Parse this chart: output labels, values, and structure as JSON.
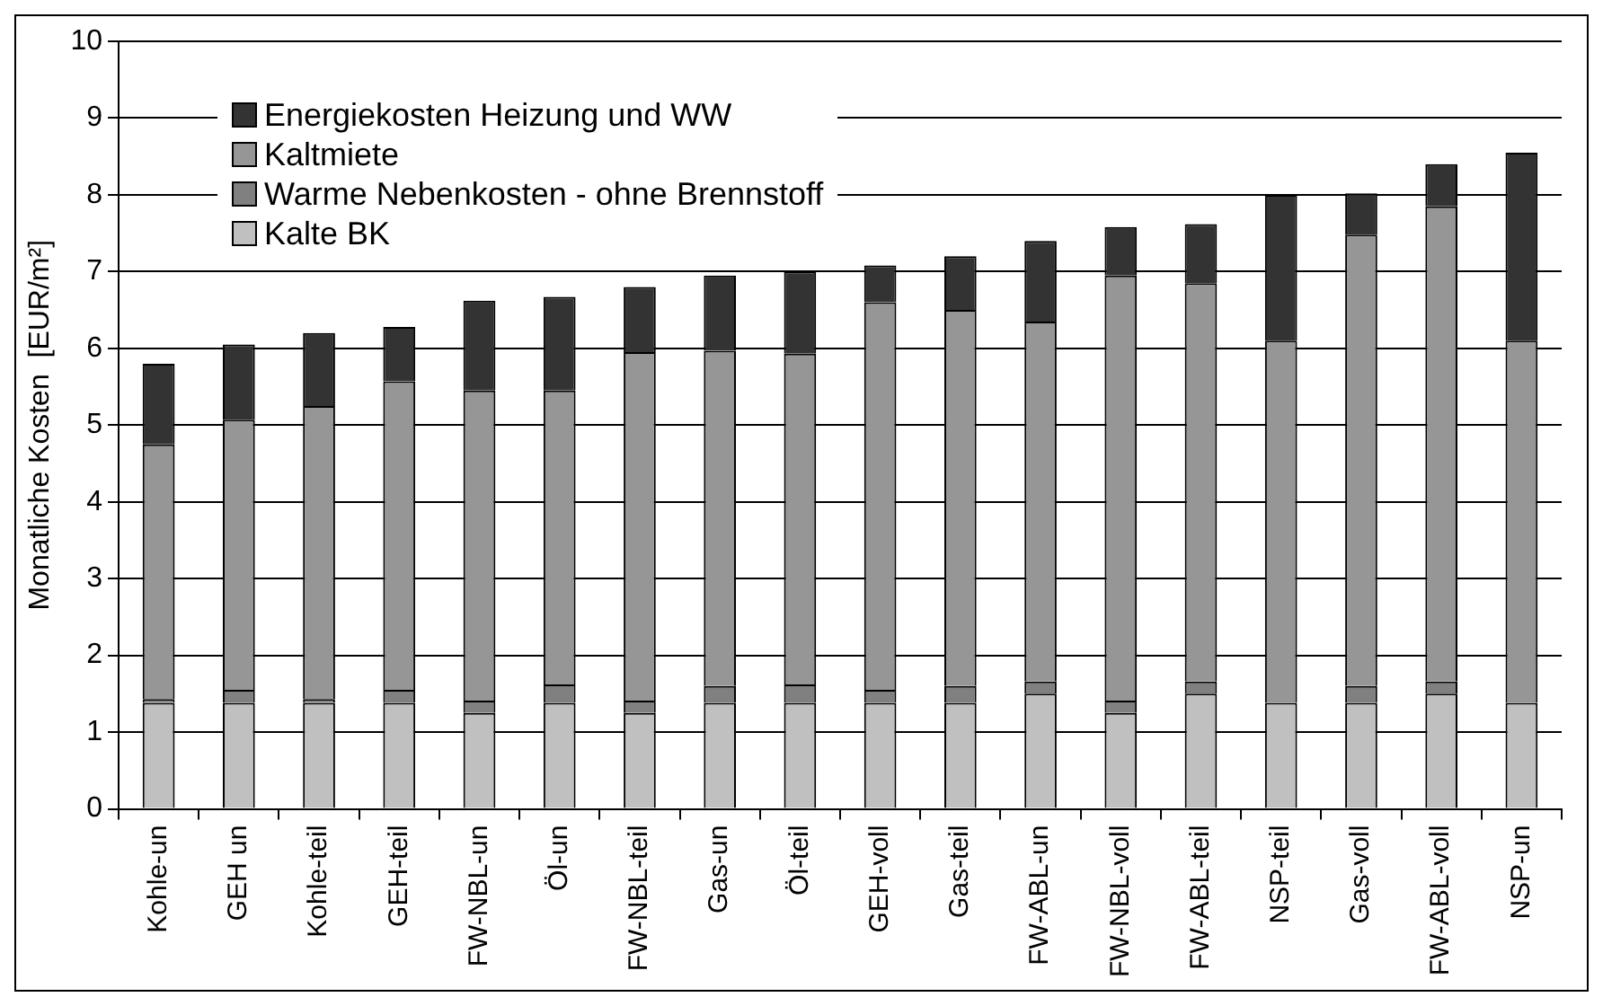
{
  "chart_data": {
    "type": "bar",
    "stacked": true,
    "ylabel": "Monatliche Kosten  [EUR/m²]",
    "categories": [
      "Kohle-un",
      "GEH un",
      "Kohle-teil",
      "GEH-teil",
      "FW-NBL-un",
      "Öl-un",
      "FW-NBL-teil",
      "Gas-un",
      "Öl-teil",
      "GEH-voll",
      "Gas-teil",
      "FW-ABL-un",
      "FW-NBL-voll",
      "FW-ABL-teil",
      "NSP-teil",
      "Gas-voll",
      "FW-ABL-voll",
      "NSP-un"
    ],
    "series": [
      {
        "name": "Kalte BK",
        "color": "#c0c0c0",
        "values": [
          1.38,
          1.38,
          1.38,
          1.38,
          1.25,
          1.38,
          1.25,
          1.38,
          1.38,
          1.38,
          1.38,
          1.5,
          1.25,
          1.5,
          1.38,
          1.38,
          1.5,
          1.38
        ]
      },
      {
        "name": "Warme Nebenkosten - ohne Brennstoff",
        "color": "#808080",
        "values": [
          0.05,
          0.17,
          0.05,
          0.17,
          0.16,
          0.24,
          0.16,
          0.22,
          0.24,
          0.17,
          0.22,
          0.16,
          0.16,
          0.16,
          0,
          0.22,
          0.16,
          0
        ]
      },
      {
        "name": "Kaltmiete",
        "color": "#969696",
        "values": [
          3.32,
          3.52,
          3.82,
          4.02,
          4.04,
          3.83,
          4.54,
          4.37,
          4.31,
          5.05,
          4.9,
          4.69,
          5.54,
          5.19,
          4.72,
          5.88,
          6.19,
          4.72
        ]
      },
      {
        "name": "Energiekosten Heizung und WW",
        "color": "#333333",
        "values": [
          1.05,
          0.98,
          0.95,
          0.71,
          1.17,
          1.22,
          0.85,
          0.98,
          1.07,
          0.48,
          0.7,
          1.05,
          0.63,
          0.77,
          1.9,
          0.54,
          0.55,
          2.45
        ]
      }
    ],
    "ylim": [
      0,
      10
    ],
    "yticks": [
      0,
      1,
      2,
      3,
      4,
      5,
      6,
      7,
      8,
      9,
      10
    ],
    "grid": "y",
    "legend": "top left"
  }
}
